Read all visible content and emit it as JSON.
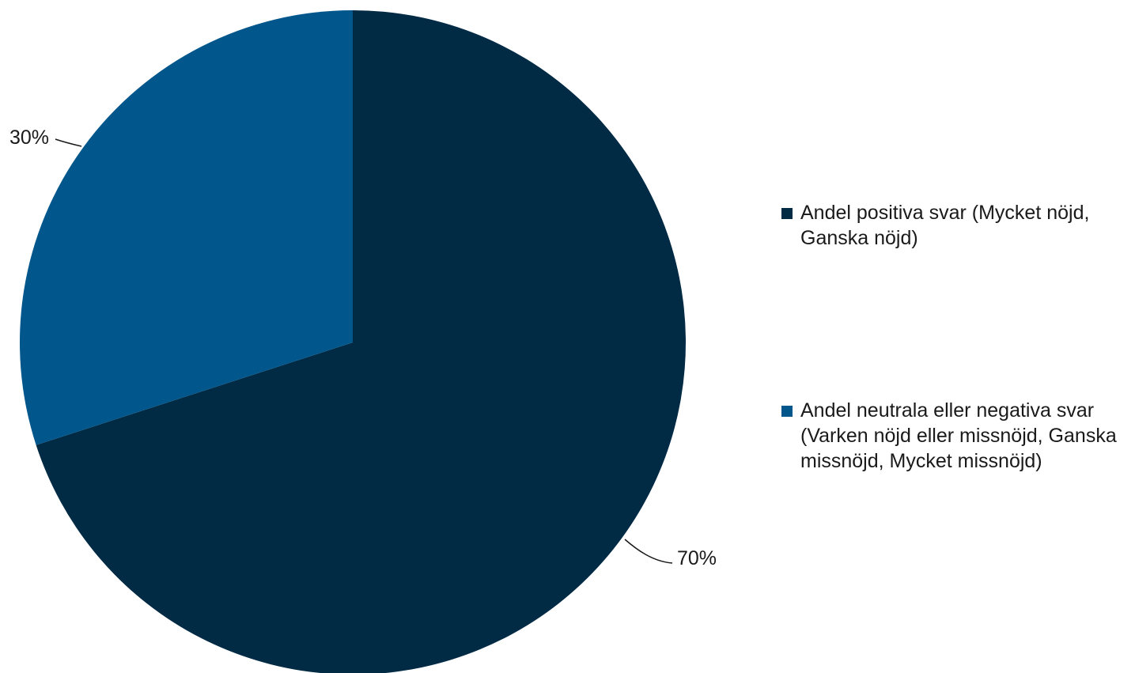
{
  "chart_data": {
    "type": "pie",
    "title": "",
    "slices": [
      {
        "name": "Andel positiva svar (Mycket nöjd, Ganska nöjd)",
        "value": 70,
        "label": "70%",
        "color": "#012a45"
      },
      {
        "name": "Andel neutrala eller negativa svar (Varken nöjd eller missnöjd, Ganska missnöjd, Mycket missnöjd)",
        "value": 30,
        "label": "30%",
        "color": "#01578c"
      }
    ],
    "start_angle_deg": 0,
    "direction": "clockwise",
    "legend": "right"
  }
}
